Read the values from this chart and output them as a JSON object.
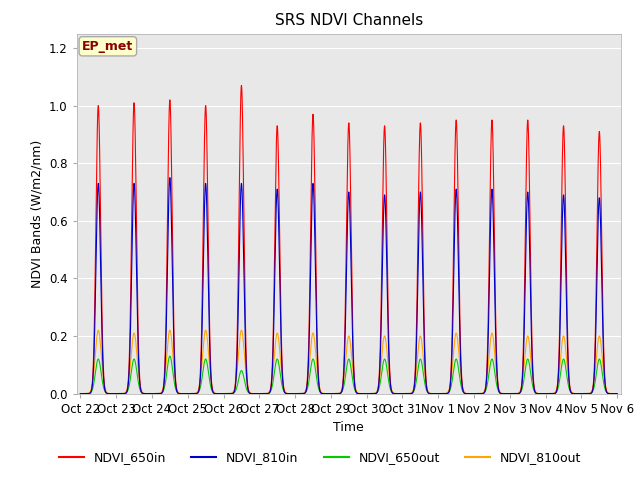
{
  "title": "SRS NDVI Channels",
  "xlabel": "Time",
  "ylabel": "NDVI Bands (W/m2/nm)",
  "ylim": [
    0,
    1.25
  ],
  "tick_labels": [
    "Oct 22",
    "Oct 23",
    "Oct 24",
    "Oct 25",
    "Oct 26",
    "Oct 27",
    "Oct 28",
    "Oct 29",
    "Oct 30",
    "Oct 31",
    "Nov 1",
    "Nov 2",
    "Nov 3",
    "Nov 4",
    "Nov 5",
    "Nov 6"
  ],
  "peak_650in": [
    1.0,
    1.01,
    1.02,
    1.0,
    1.07,
    0.93,
    0.97,
    0.94,
    0.93,
    0.94,
    0.95,
    0.95,
    0.95,
    0.93,
    0.91
  ],
  "peak_810in": [
    0.73,
    0.73,
    0.75,
    0.73,
    0.73,
    0.71,
    0.73,
    0.7,
    0.69,
    0.7,
    0.71,
    0.71,
    0.7,
    0.69,
    0.68
  ],
  "peak_650out": [
    0.12,
    0.12,
    0.13,
    0.12,
    0.08,
    0.12,
    0.12,
    0.12,
    0.12,
    0.12,
    0.12,
    0.12,
    0.12,
    0.12,
    0.12
  ],
  "peak_810out": [
    0.22,
    0.21,
    0.22,
    0.22,
    0.22,
    0.21,
    0.21,
    0.2,
    0.2,
    0.2,
    0.21,
    0.21,
    0.2,
    0.2,
    0.2
  ],
  "colors": {
    "NDVI_650in": "#FF0000",
    "NDVI_810in": "#0000CC",
    "NDVI_650out": "#00CC00",
    "NDVI_810out": "#FFA500"
  },
  "annotation_text": "EP_met",
  "annotation_color": "#8B0000",
  "annotation_bg": "#FFFFCC",
  "bg_color": "#E8E8E8",
  "fig_bg": "#FFFFFF",
  "grid_color": "#FFFFFF",
  "title_fontsize": 11,
  "label_fontsize": 9,
  "tick_fontsize": 8.5
}
